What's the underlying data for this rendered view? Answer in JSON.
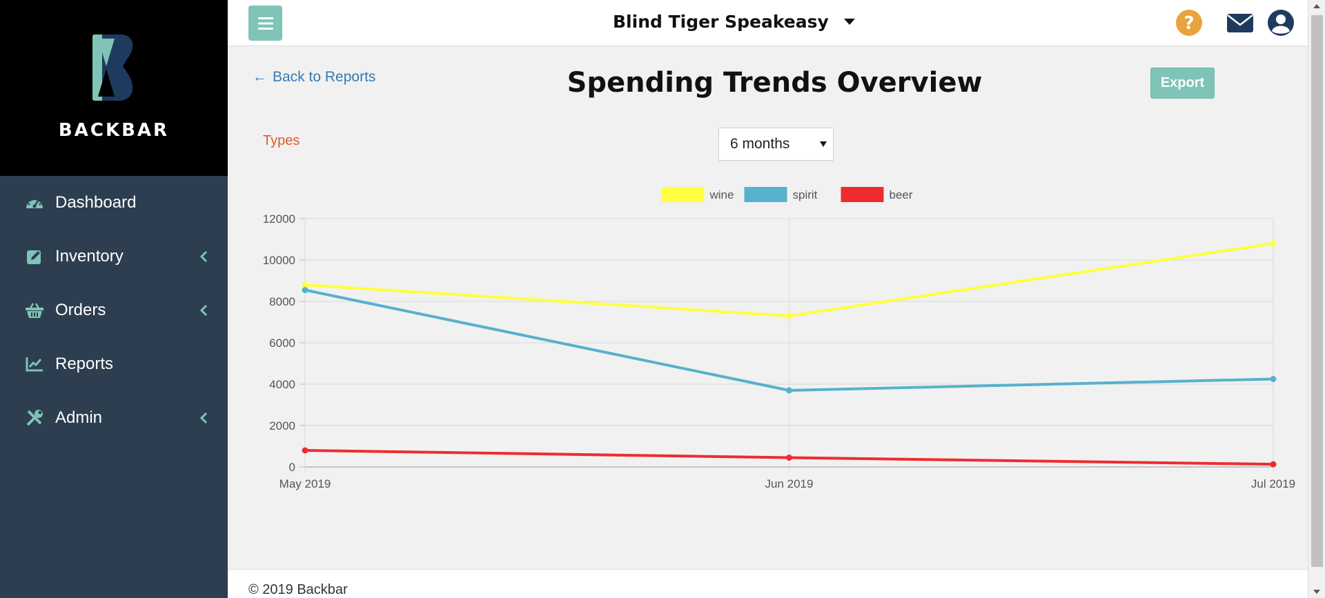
{
  "brand": {
    "name": "BACKBAR"
  },
  "sidebar": {
    "items": [
      {
        "label": "Dashboard",
        "icon": "dashboard-icon",
        "has_submenu": false
      },
      {
        "label": "Inventory",
        "icon": "edit-icon",
        "has_submenu": true
      },
      {
        "label": "Orders",
        "icon": "basket-icon",
        "has_submenu": true
      },
      {
        "label": "Reports",
        "icon": "line-chart-icon",
        "has_submenu": false
      },
      {
        "label": "Admin",
        "icon": "tools-icon",
        "has_submenu": true
      }
    ]
  },
  "topbar": {
    "venue": "Blind Tiger Speakeasy",
    "icons": [
      "help-icon",
      "mail-icon",
      "user-icon"
    ]
  },
  "main": {
    "back_link": "Back to Reports",
    "title": "Spending Trends Overview",
    "export_label": "Export",
    "types_label": "Types",
    "period_select": "6 months"
  },
  "colors": {
    "accent": "#7fc4b6",
    "sidebar": "#2c3e50",
    "link": "#337ab7",
    "types": "#e05a2c",
    "help": "#e8a33d",
    "icon_dark": "#1f3a5f"
  },
  "chart_data": {
    "type": "line",
    "x": [
      "May 2019",
      "Jun 2019",
      "Jul 2019"
    ],
    "ylim": [
      0,
      12000
    ],
    "yticks": [
      0,
      2000,
      4000,
      6000,
      8000,
      10000,
      12000
    ],
    "legend_position": "top-center",
    "grid": true,
    "series": [
      {
        "name": "wine",
        "color": "#ffff40",
        "values": [
          8800,
          7300,
          10800
        ]
      },
      {
        "name": "spirit",
        "color": "#56b1cc",
        "values": [
          8550,
          3700,
          4250
        ]
      },
      {
        "name": "beer",
        "color": "#ee2c30",
        "values": [
          800,
          450,
          130
        ]
      }
    ]
  },
  "footer": {
    "text": "© 2019 Backbar"
  }
}
